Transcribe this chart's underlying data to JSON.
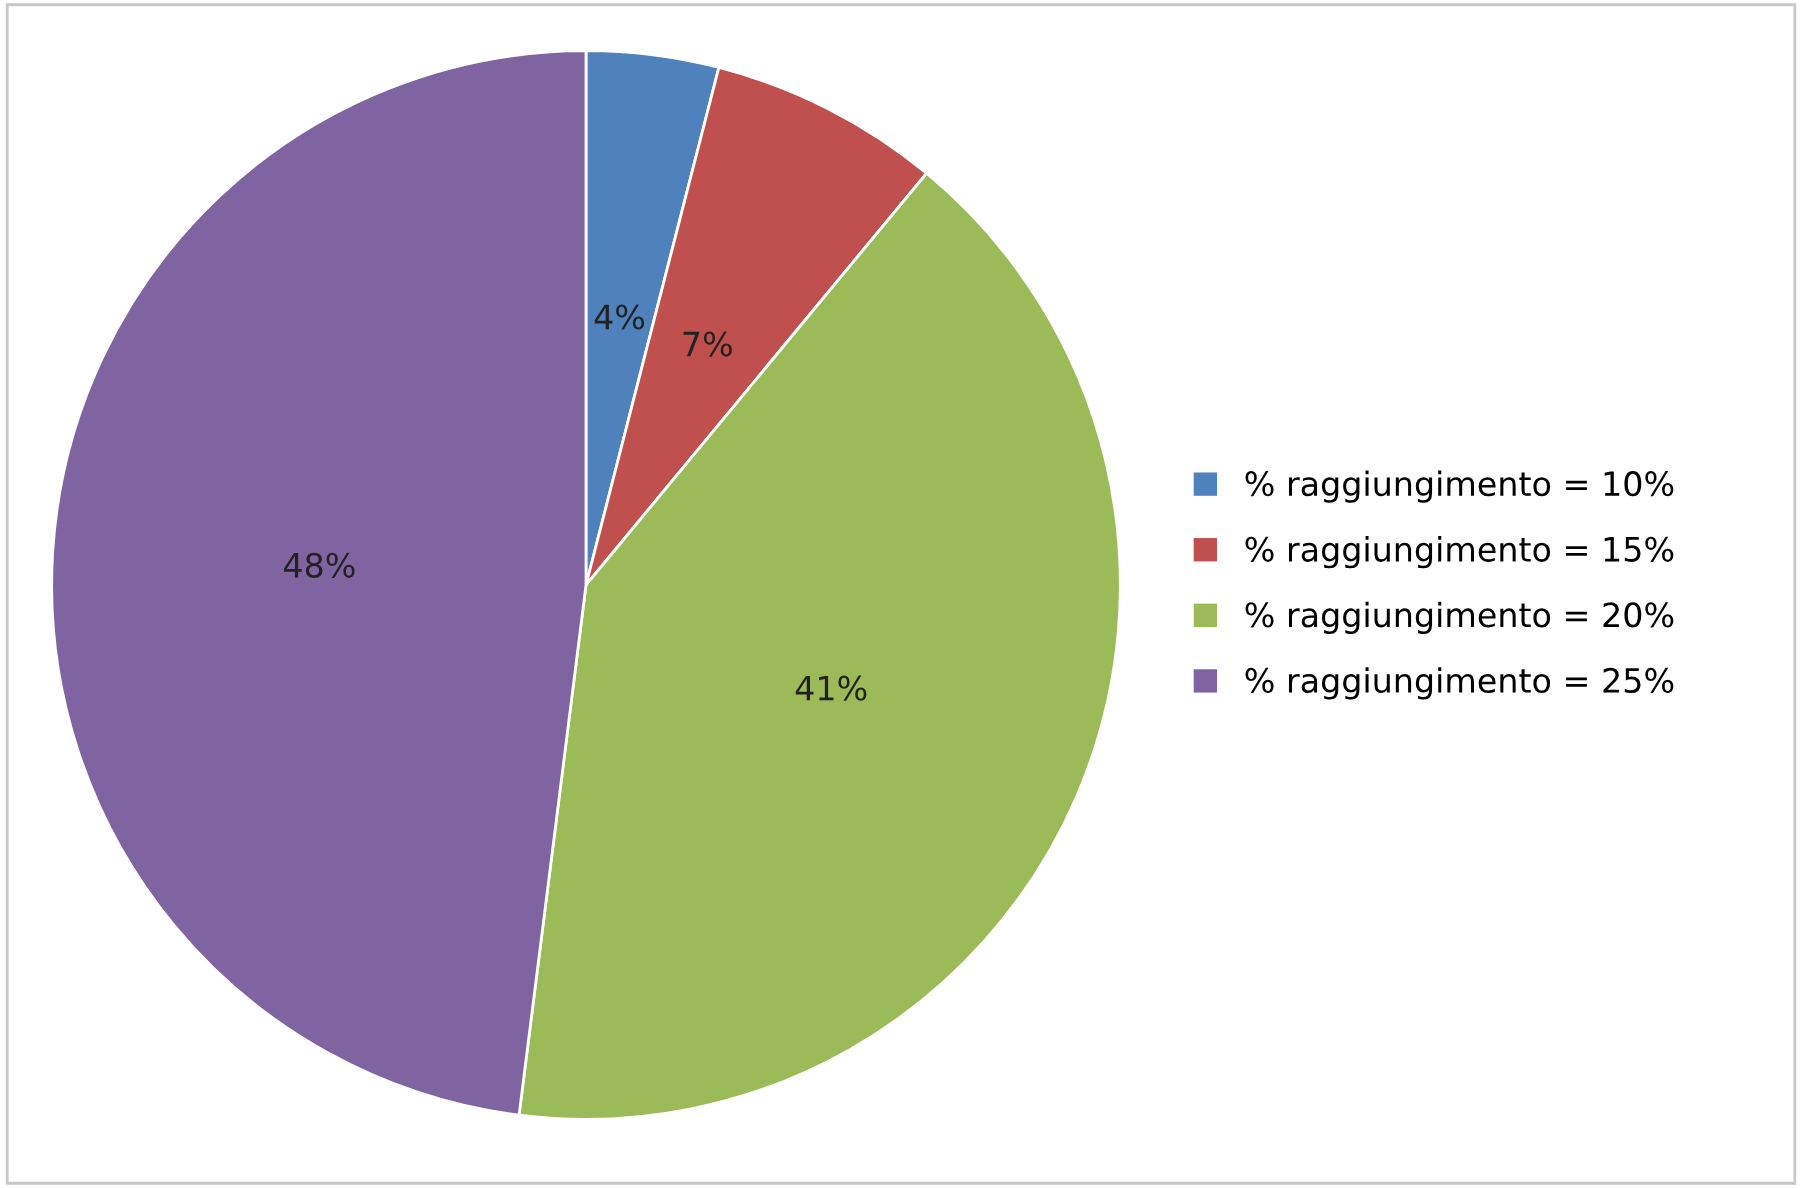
{
  "chart_data": {
    "type": "pie",
    "categories": [
      "% raggiungimento = 10%",
      "% raggiungimento = 15%",
      "% raggiungimento = 20%",
      "% raggiungimento = 25%"
    ],
    "values": [
      4,
      7,
      41,
      48
    ],
    "colors": [
      "#4f81bd",
      "#c0504d",
      "#9bbb59",
      "#8064a2"
    ],
    "value_labels": [
      "4%",
      "7%",
      "41%",
      "48%"
    ],
    "legend": "right"
  }
}
